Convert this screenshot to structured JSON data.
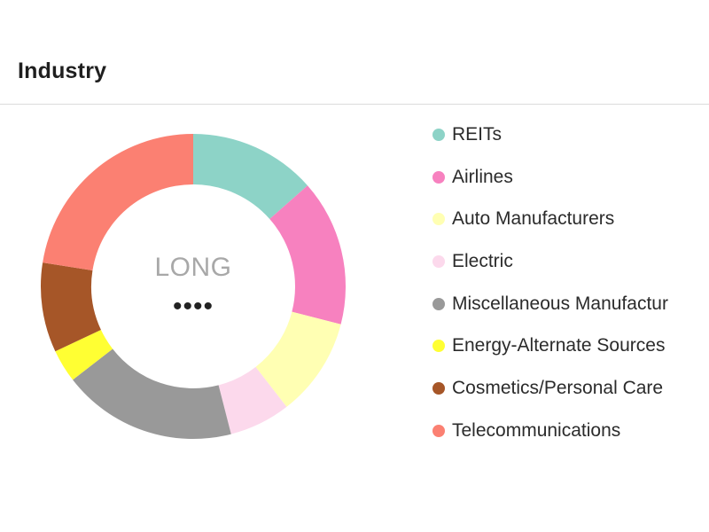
{
  "header": {
    "title": "Industry"
  },
  "center": {
    "label": "LONG",
    "value": "••••"
  },
  "chart_data": {
    "type": "pie",
    "donut": true,
    "legend_position": "right",
    "categories": [
      "REITs",
      "Airlines",
      "Auto Manufacturers",
      "Electric",
      "Miscellaneous Manufactur",
      "Energy-Alternate Sources",
      "Cosmetics/Personal Care",
      "Telecommunications"
    ],
    "values": [
      13.5,
      15.5,
      10.5,
      6.5,
      18.5,
      3.5,
      9.5,
      22.5
    ],
    "colors": [
      "#8dd3c7",
      "#f781bf",
      "#ffffb3",
      "#fcd9ec",
      "#999999",
      "#ffff33",
      "#a65628",
      "#fb8072"
    ]
  }
}
